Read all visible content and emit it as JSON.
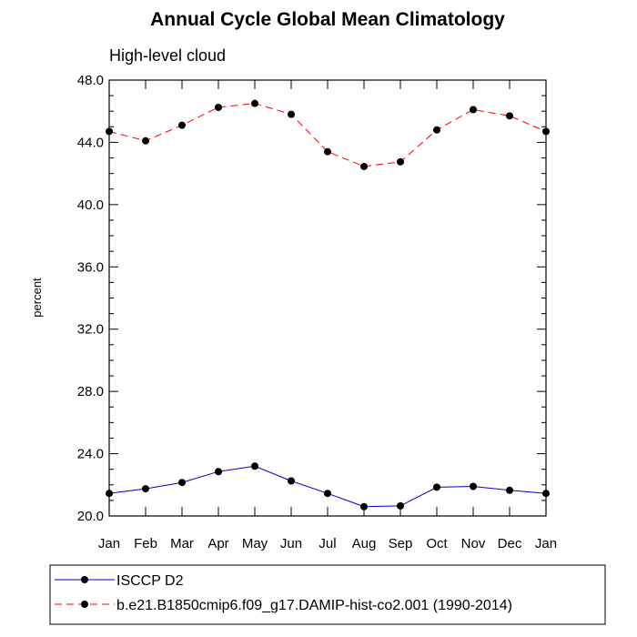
{
  "chart_data": {
    "type": "line",
    "title": "Annual Cycle Global Mean Climatology",
    "subtitle": "High-level cloud",
    "xlabel": "",
    "ylabel": "percent",
    "ylim": [
      20.0,
      48.0
    ],
    "yticks": [
      "20.0",
      "24.0",
      "28.0",
      "32.0",
      "36.0",
      "40.0",
      "44.0",
      "48.0"
    ],
    "categories": [
      "Jan",
      "Feb",
      "Mar",
      "Apr",
      "May",
      "Jun",
      "Jul",
      "Aug",
      "Sep",
      "Oct",
      "Nov",
      "Dec",
      "Jan"
    ],
    "grid": false,
    "legend_position": "bottom",
    "series": [
      {
        "name": "ISCCP D2",
        "color": "#0000cc",
        "dash": "solid",
        "values": [
          21.45,
          21.75,
          22.15,
          22.85,
          23.2,
          22.25,
          21.45,
          20.6,
          20.65,
          21.85,
          21.9,
          21.65,
          21.45
        ]
      },
      {
        "name": "b.e21.B1850cmip6.f09_g17.DAMIP-hist-co2.001 (1990-2014)",
        "color": "#ff0000",
        "dash": "dashed",
        "values": [
          44.7,
          44.1,
          45.1,
          46.25,
          46.5,
          45.8,
          43.4,
          42.45,
          42.75,
          44.8,
          46.1,
          45.7,
          44.7
        ]
      }
    ]
  }
}
